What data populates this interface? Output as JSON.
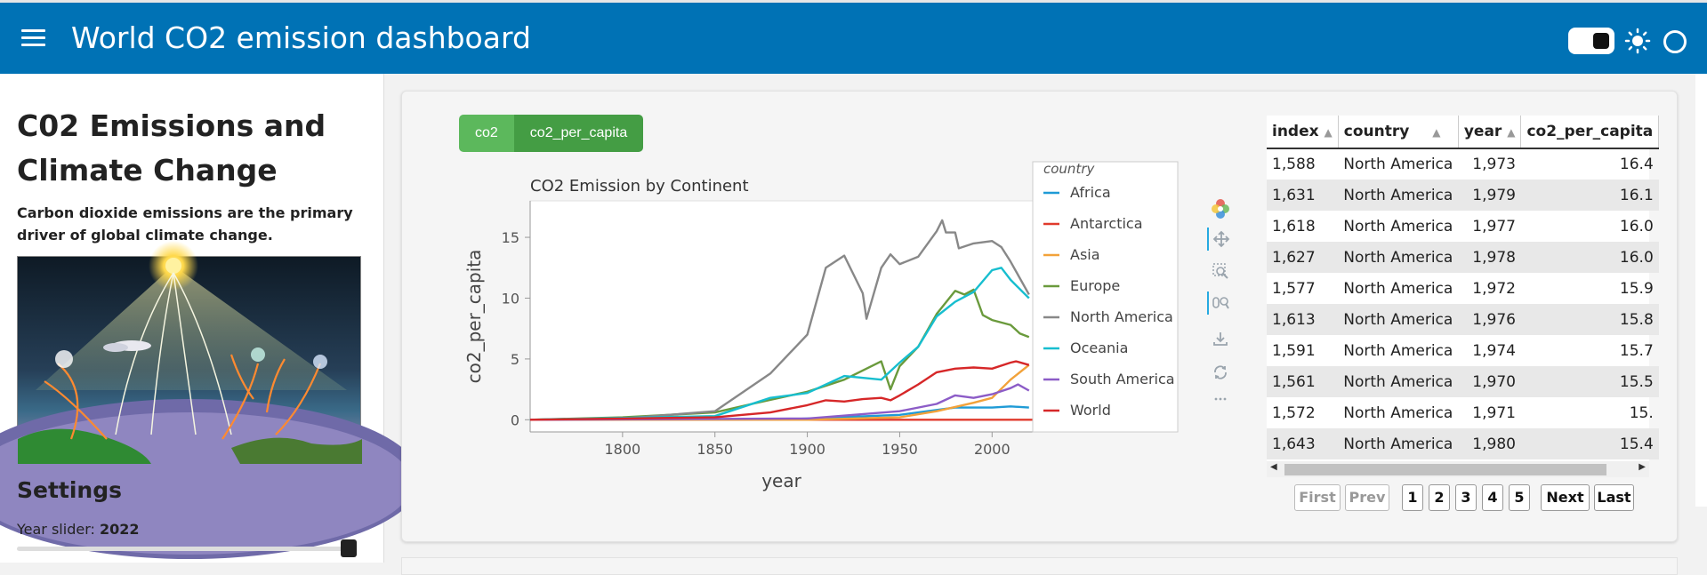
{
  "header": {
    "title": "World CO2 emission dashboard",
    "menu_icon": "hamburger-menu-icon",
    "theme_toggle_icon": "toggle-icon",
    "sun_icon": "sun-icon",
    "circle_icon": "circle-icon",
    "bg_color": "#0072b5"
  },
  "sidebar": {
    "title": "C02 Emissions and Climate Change",
    "description": "Carbon dioxide emissions are the primary driver of global climate change.",
    "settings_heading": "Settings",
    "slider_label": "Year slider:",
    "slider_value": "2022"
  },
  "buttons": {
    "co2": "co2",
    "co2_per_capita": "co2_per_capita"
  },
  "chart_data": {
    "type": "line",
    "title": "CO2 Emission by Continent",
    "xlabel": "year",
    "ylabel": "co2_per_capita",
    "xlim": [
      1750,
      2022
    ],
    "ylim": [
      -1,
      18
    ],
    "x_ticks": [
      "1800",
      "1850",
      "1900",
      "1950",
      "2000"
    ],
    "y_ticks": [
      "0",
      "5",
      "10",
      "15"
    ],
    "legend_title": "country",
    "legend_position": "right",
    "series": [
      {
        "name": "Africa",
        "color": "#1f9bd6",
        "points": [
          [
            1750,
            0
          ],
          [
            1880,
            0
          ],
          [
            1900,
            0.1
          ],
          [
            1950,
            0.4
          ],
          [
            1980,
            1.0
          ],
          [
            2000,
            1.0
          ],
          [
            2010,
            1.1
          ],
          [
            2020,
            1.0
          ]
        ]
      },
      {
        "name": "Antarctica",
        "color": "#e03a2c",
        "points": [
          [
            1750,
            0
          ],
          [
            2022,
            0
          ]
        ]
      },
      {
        "name": "Asia",
        "color": "#f2a23a",
        "points": [
          [
            1750,
            0
          ],
          [
            1900,
            0
          ],
          [
            1950,
            0.2
          ],
          [
            1970,
            0.7
          ],
          [
            1990,
            1.4
          ],
          [
            2000,
            1.8
          ],
          [
            2010,
            3.3
          ],
          [
            2020,
            4.5
          ]
        ]
      },
      {
        "name": "Europe",
        "color": "#6a9a3c",
        "points": [
          [
            1750,
            0
          ],
          [
            1800,
            0.2
          ],
          [
            1850,
            0.6
          ],
          [
            1870,
            1.3
          ],
          [
            1900,
            2.3
          ],
          [
            1920,
            3.3
          ],
          [
            1940,
            4.8
          ],
          [
            1945,
            2.5
          ],
          [
            1950,
            4.4
          ],
          [
            1960,
            6.0
          ],
          [
            1970,
            8.7
          ],
          [
            1980,
            10.6
          ],
          [
            1985,
            10.3
          ],
          [
            1990,
            10.7
          ],
          [
            1995,
            8.6
          ],
          [
            2000,
            8.2
          ],
          [
            2010,
            7.8
          ],
          [
            2015,
            7.1
          ],
          [
            2020,
            6.8
          ]
        ]
      },
      {
        "name": "North America",
        "color": "#888888",
        "points": [
          [
            1750,
            0
          ],
          [
            1800,
            0.1
          ],
          [
            1850,
            0.7
          ],
          [
            1880,
            3.8
          ],
          [
            1900,
            7.0
          ],
          [
            1910,
            12.5
          ],
          [
            1920,
            13.5
          ],
          [
            1930,
            10.4
          ],
          [
            1932,
            8.3
          ],
          [
            1940,
            12.5
          ],
          [
            1945,
            13.6
          ],
          [
            1950,
            12.8
          ],
          [
            1960,
            13.4
          ],
          [
            1970,
            15.5
          ],
          [
            1973,
            16.4
          ],
          [
            1975,
            15.4
          ],
          [
            1980,
            15.4
          ],
          [
            1982,
            14.1
          ],
          [
            1990,
            14.5
          ],
          [
            2000,
            14.7
          ],
          [
            2005,
            14.2
          ],
          [
            2010,
            13.0
          ],
          [
            2020,
            10.3
          ]
        ]
      },
      {
        "name": "Oceania",
        "color": "#17becf",
        "points": [
          [
            1750,
            0
          ],
          [
            1850,
            0.3
          ],
          [
            1880,
            1.8
          ],
          [
            1900,
            2.2
          ],
          [
            1920,
            3.6
          ],
          [
            1940,
            3.3
          ],
          [
            1950,
            4.7
          ],
          [
            1960,
            6.0
          ],
          [
            1970,
            8.5
          ],
          [
            1980,
            9.7
          ],
          [
            1990,
            10.5
          ],
          [
            2000,
            12.3
          ],
          [
            2005,
            12.5
          ],
          [
            2010,
            11.5
          ],
          [
            2020,
            10.0
          ]
        ]
      },
      {
        "name": "South America",
        "color": "#8c5cc7",
        "points": [
          [
            1750,
            0
          ],
          [
            1900,
            0.1
          ],
          [
            1950,
            0.7
          ],
          [
            1970,
            1.3
          ],
          [
            1980,
            2.0
          ],
          [
            1990,
            1.8
          ],
          [
            2000,
            2.1
          ],
          [
            2010,
            2.6
          ],
          [
            2014,
            2.9
          ],
          [
            2020,
            2.4
          ]
        ]
      },
      {
        "name": "World",
        "color": "#d62728",
        "points": [
          [
            1750,
            0
          ],
          [
            1850,
            0.2
          ],
          [
            1880,
            0.6
          ],
          [
            1900,
            1.2
          ],
          [
            1910,
            1.6
          ],
          [
            1920,
            1.5
          ],
          [
            1930,
            1.7
          ],
          [
            1940,
            1.8
          ],
          [
            1945,
            1.6
          ],
          [
            1950,
            2.0
          ],
          [
            1960,
            2.9
          ],
          [
            1970,
            3.9
          ],
          [
            1980,
            4.2
          ],
          [
            1990,
            4.3
          ],
          [
            2000,
            4.2
          ],
          [
            2010,
            4.7
          ],
          [
            2013,
            4.8
          ],
          [
            2020,
            4.5
          ]
        ]
      }
    ]
  },
  "toolbar": {
    "items": [
      "bokeh-logo-icon",
      "pan-icon",
      "box-zoom-icon",
      "wheel-zoom-icon",
      "save-icon",
      "reset-icon",
      "more-icon"
    ]
  },
  "table": {
    "columns": [
      "index",
      "country",
      "year",
      "co2_per_capita"
    ],
    "rows": [
      [
        "1,588",
        "North America",
        "1,973",
        "16.4"
      ],
      [
        "1,631",
        "North America",
        "1,979",
        "16.1"
      ],
      [
        "1,618",
        "North America",
        "1,977",
        "16.0"
      ],
      [
        "1,627",
        "North America",
        "1,978",
        "16.0"
      ],
      [
        "1,577",
        "North America",
        "1,972",
        "15.9"
      ],
      [
        "1,613",
        "North America",
        "1,976",
        "15.8"
      ],
      [
        "1,591",
        "North America",
        "1,974",
        "15.7"
      ],
      [
        "1,561",
        "North America",
        "1,970",
        "15.5"
      ],
      [
        "1,572",
        "North America",
        "1,971",
        "15."
      ],
      [
        "1,643",
        "North America",
        "1,980",
        "15.4"
      ]
    ]
  },
  "pager": {
    "first": "First",
    "prev": "Prev",
    "pages": [
      "1",
      "2",
      "3",
      "4",
      "5"
    ],
    "next": "Next",
    "last": "Last"
  }
}
